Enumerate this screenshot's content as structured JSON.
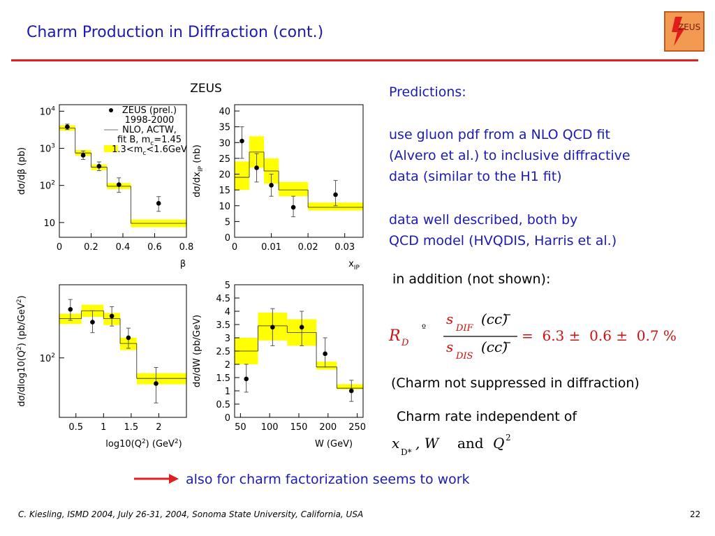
{
  "slide": {
    "title": "Charm Production in Diffraction (cont.)",
    "logo_text": "ZEUS",
    "footer": "C. Kiesling, ISMD 2004, July 26-31, 2004, Sonoma State University, California, USA",
    "page_number": "22"
  },
  "text": {
    "predictions": "Predictions:",
    "gluon_1": "use gluon pdf from a NLO QCD fit",
    "gluon_2": "(Alvero et al.) to inclusive diffractive",
    "gluon_3": "data (similar to the H1 fit)",
    "described_1": "data well described, both by",
    "described_2": "QCD model (HVQDIS, Harris et al.)",
    "in_addition": "in addition (not shown):",
    "not_suppressed": "(Charm not suppressed in diffraction)",
    "rate_indep": "Charm rate independent of",
    "conclusion": "also for charm factorization seems to work"
  },
  "formula": {
    "lhs_R": "R",
    "lhs_sub": "D",
    "equiv": "º",
    "num_s": "s",
    "num_sub": "DIF",
    "num_arg": "(cc)",
    "den_s": "s",
    "den_sub": "DIS",
    "den_arg": "(cc)",
    "rhs": "=  6.3 ±  0.6 ±  0.7 %"
  },
  "vars": {
    "x": "x",
    "x_sub": "D*",
    "comma_W": ", W",
    "and": "and",
    "Q": "Q",
    "Q_sup": "2"
  },
  "colors": {
    "title_blue": "#1a1ab4",
    "rule_red": "#e02020",
    "band_yellow": "#ffff00",
    "arrow_red": "#e02020"
  },
  "chart_data": [
    {
      "type": "bar",
      "header": "ZEUS",
      "log_y": true,
      "xlabel": "β",
      "ylabel": "dσ/dβ (pb)",
      "xlim": [
        0,
        0.8
      ],
      "ylim": [
        4,
        15000
      ],
      "xticks": [
        "0",
        "0.2",
        "0.4",
        "0.6",
        "0.8"
      ],
      "yticks": [
        "10",
        "10^2",
        "10^3",
        "10^4"
      ],
      "legend": [
        {
          "marker": "dot",
          "label": "ZEUS (prel.)"
        },
        {
          "marker": "none",
          "label": "1998-2000"
        },
        {
          "marker": "line",
          "label": "NLO, ACTW,"
        },
        {
          "marker": "none",
          "label": "fit B, m_c=1.45"
        },
        {
          "marker": "band",
          "label": "1.3<m_c<1.6GeV"
        }
      ],
      "bins": [
        [
          0,
          0.1
        ],
        [
          0.1,
          0.2
        ],
        [
          0.2,
          0.3
        ],
        [
          0.3,
          0.45
        ],
        [
          0.45,
          0.8
        ]
      ],
      "theory": [
        3500,
        750,
        310,
        95,
        9.5
      ],
      "band_low": [
        3000,
        630,
        260,
        80,
        7.5
      ],
      "band_high": [
        4200,
        900,
        370,
        115,
        12
      ],
      "points": [
        {
          "x": 0.05,
          "y": 3800,
          "lo": 3200,
          "hi": 4500
        },
        {
          "x": 0.15,
          "y": 650,
          "lo": 500,
          "hi": 850
        },
        {
          "x": 0.25,
          "y": 330,
          "lo": 250,
          "hi": 430
        },
        {
          "x": 0.375,
          "y": 105,
          "lo": 65,
          "hi": 160
        },
        {
          "x": 0.625,
          "y": 33,
          "lo": 20,
          "hi": 50
        }
      ]
    },
    {
      "type": "bar",
      "xlabel": "x_IP",
      "ylabel": "dσ/dx_IP (nb)",
      "xlim": [
        0,
        0.035
      ],
      "ylim": [
        0,
        42
      ],
      "xticks": [
        "0",
        "0.01",
        "0.02",
        "0.03"
      ],
      "yticks": [
        "0",
        "5",
        "10",
        "15",
        "20",
        "25",
        "30",
        "35",
        "40"
      ],
      "bins": [
        [
          0,
          0.004
        ],
        [
          0.004,
          0.008
        ],
        [
          0.008,
          0.012
        ],
        [
          0.012,
          0.02
        ],
        [
          0.02,
          0.035
        ]
      ],
      "theory": [
        19,
        27,
        21,
        15,
        9.5
      ],
      "band_low": [
        15,
        22,
        17,
        13,
        8.5
      ],
      "band_high": [
        24,
        32,
        25,
        17.5,
        11
      ],
      "points": [
        {
          "x": 0.002,
          "y": 30.5,
          "lo": 25,
          "hi": 35
        },
        {
          "x": 0.006,
          "y": 22,
          "lo": 17.5,
          "hi": 26.5
        },
        {
          "x": 0.01,
          "y": 16.5,
          "lo": 13,
          "hi": 20
        },
        {
          "x": 0.016,
          "y": 9.5,
          "lo": 6.5,
          "hi": 13
        },
        {
          "x": 0.0275,
          "y": 13.5,
          "lo": 10,
          "hi": 18
        }
      ]
    },
    {
      "type": "bar",
      "log_y": true,
      "xlabel": "log10(Q^2) (GeV^2)",
      "ylabel": "dσ/dlog10(Q^2) (pb/GeV^2)",
      "xlim": [
        0.2,
        2.5
      ],
      "ylim": [
        25,
        550
      ],
      "xticks": [
        "0.5",
        "1",
        "1.5",
        "2"
      ],
      "yticks": [
        "10^2"
      ],
      "bins": [
        [
          0.2,
          0.6
        ],
        [
          0.6,
          1.0
        ],
        [
          1.0,
          1.3
        ],
        [
          1.3,
          1.6
        ],
        [
          1.6,
          2.5
        ]
      ],
      "theory": [
        250,
        300,
        250,
        140,
        62
      ],
      "band_low": [
        220,
        260,
        215,
        120,
        54
      ],
      "band_high": [
        280,
        345,
        285,
        160,
        70
      ],
      "points": [
        {
          "x": 0.4,
          "y": 310,
          "lo": 240,
          "hi": 390
        },
        {
          "x": 0.8,
          "y": 230,
          "lo": 180,
          "hi": 300
        },
        {
          "x": 1.15,
          "y": 265,
          "lo": 210,
          "hi": 330
        },
        {
          "x": 1.45,
          "y": 160,
          "lo": 125,
          "hi": 200
        },
        {
          "x": 1.95,
          "y": 55,
          "lo": 35,
          "hi": 80
        }
      ]
    },
    {
      "type": "bar",
      "xlabel": "W (GeV)",
      "ylabel": "dσ/dW (pb/GeV)",
      "xlim": [
        40,
        260
      ],
      "ylim": [
        0,
        5
      ],
      "xticks": [
        "50",
        "100",
        "150",
        "200",
        "250"
      ],
      "yticks": [
        "0",
        "0.5",
        "1",
        "1.5",
        "2",
        "2.5",
        "3",
        "3.5",
        "4",
        "4.5",
        "5"
      ],
      "bins": [
        [
          40,
          80
        ],
        [
          80,
          130
        ],
        [
          130,
          180
        ],
        [
          180,
          215
        ],
        [
          215,
          260
        ]
      ],
      "theory": [
        2.5,
        3.45,
        3.2,
        1.9,
        1.1
      ],
      "band_low": [
        2.0,
        2.9,
        2.7,
        1.8,
        1.05
      ],
      "band_high": [
        3.0,
        3.95,
        3.7,
        2.1,
        1.25
      ],
      "points": [
        {
          "x": 60,
          "y": 1.45,
          "lo": 0.95,
          "hi": 2.0
        },
        {
          "x": 105,
          "y": 3.4,
          "lo": 2.7,
          "hi": 4.1
        },
        {
          "x": 155,
          "y": 3.4,
          "lo": 2.7,
          "hi": 4.0
        },
        {
          "x": 195,
          "y": 2.4,
          "lo": 1.9,
          "hi": 3.0
        },
        {
          "x": 240,
          "y": 1.0,
          "lo": 0.6,
          "hi": 1.4
        }
      ]
    }
  ]
}
